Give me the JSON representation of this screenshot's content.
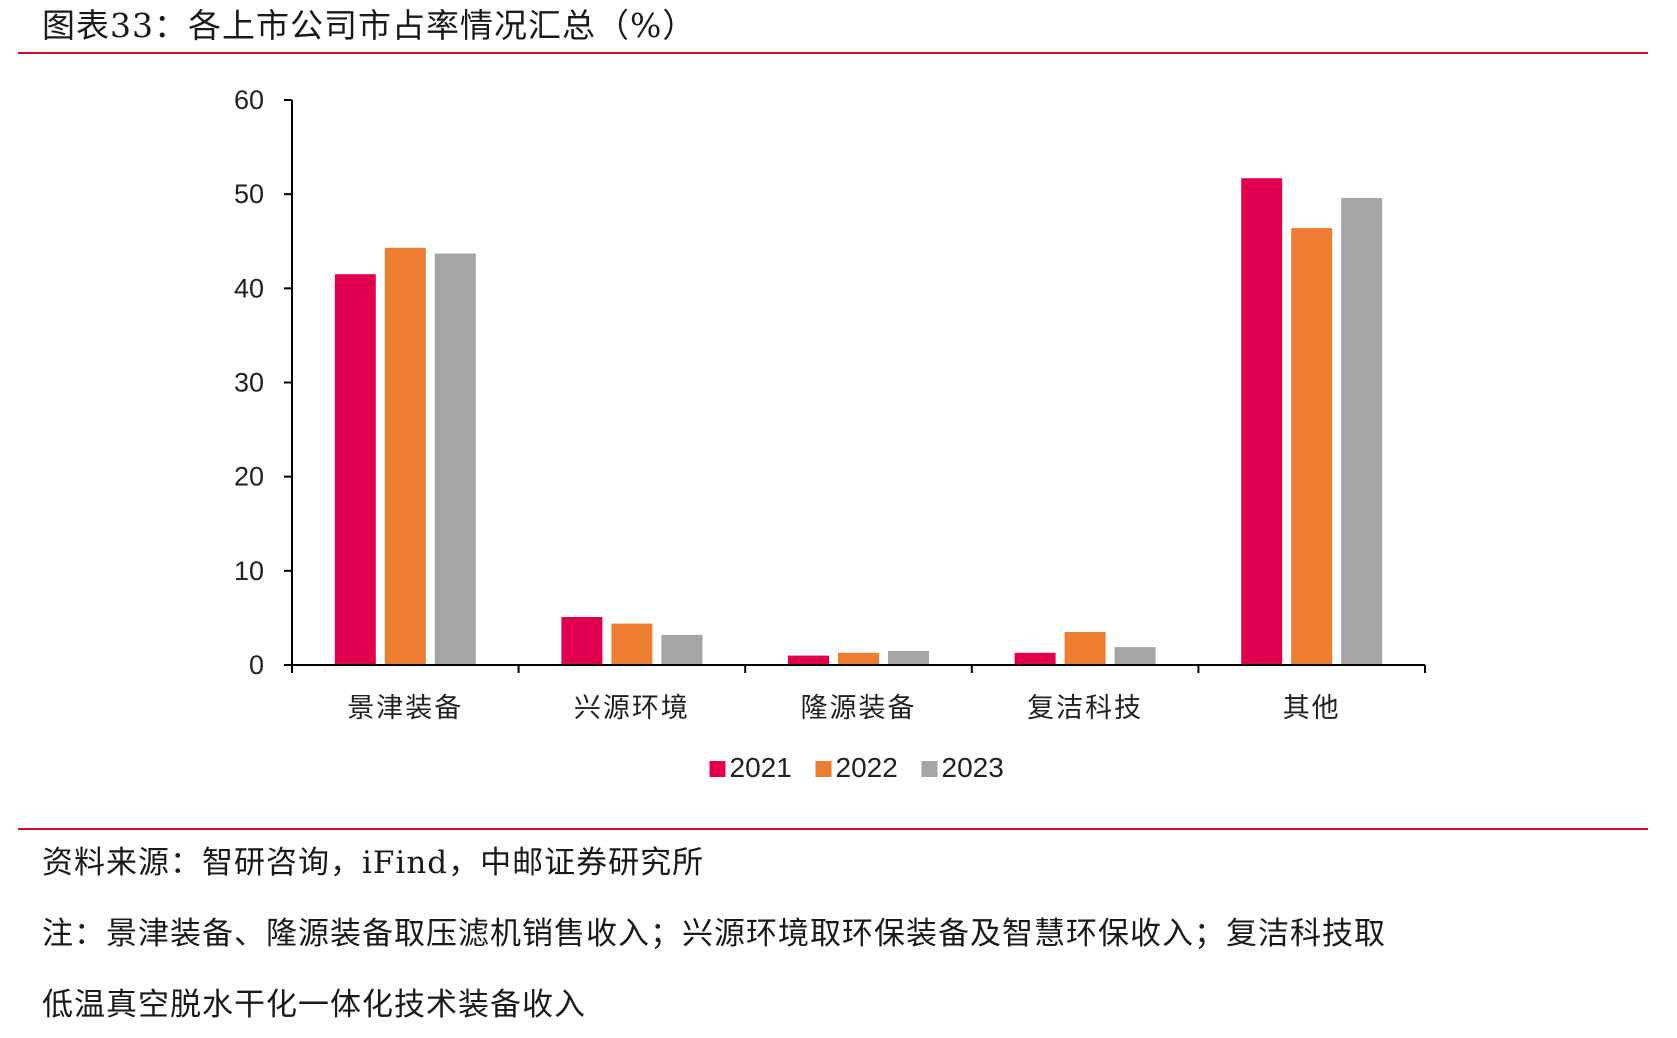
{
  "title": "图表33：各上市公司市占率情况汇总（%）",
  "colors": {
    "rule": "#c8102e",
    "axis": "#000000",
    "series_2021": "#e0004f",
    "series_2022": "#ed7d31",
    "series_2023": "#a5a5a5"
  },
  "chart_data": {
    "type": "bar",
    "title": "",
    "xlabel": "",
    "ylabel": "",
    "ylim": [
      0,
      60
    ],
    "yticks": [
      0,
      10,
      20,
      30,
      40,
      50,
      60
    ],
    "grid": false,
    "legend_position": "bottom-center",
    "categories": [
      "景津装备",
      "兴源环境",
      "隆源装备",
      "复洁科技",
      "其他"
    ],
    "series": [
      {
        "name": "2021",
        "color": "#e0004f",
        "values": [
          41.5,
          5.1,
          1.0,
          1.3,
          51.7
        ]
      },
      {
        "name": "2022",
        "color": "#ed7d31",
        "values": [
          44.3,
          4.4,
          1.3,
          3.5,
          46.4
        ]
      },
      {
        "name": "2023",
        "color": "#a5a5a5",
        "values": [
          43.7,
          3.2,
          1.5,
          1.9,
          49.6
        ]
      }
    ]
  },
  "source": "资料来源：智研咨询，iFind，中邮证券研究所",
  "note_line1": "注：景津装备、隆源装备取压滤机销售收入；兴源环境取环保装备及智慧环保收入；复洁科技取",
  "note_line2": "低温真空脱水干化一体化技术装备收入"
}
